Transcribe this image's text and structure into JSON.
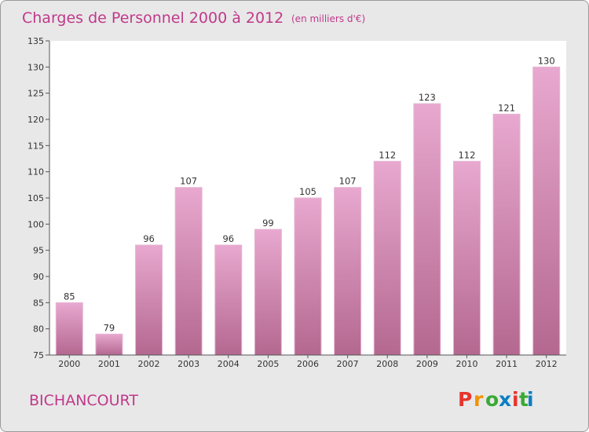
{
  "chart_data": {
    "type": "bar",
    "title": "Charges de Personnel 2000 à 2012",
    "subtitle": "(en milliers d'€)",
    "categories": [
      "2000",
      "2001",
      "2002",
      "2003",
      "2004",
      "2005",
      "2006",
      "2007",
      "2008",
      "2009",
      "2010",
      "2011",
      "2012"
    ],
    "values": [
      85,
      79,
      96,
      107,
      96,
      99,
      105,
      107,
      112,
      123,
      112,
      121,
      130
    ],
    "data_labels": [
      "85",
      "79",
      "96",
      "107",
      "96",
      "99",
      "105",
      "107",
      "112",
      "123",
      "112",
      "121",
      "130"
    ],
    "yticks": [
      "75",
      "80",
      "85",
      "90",
      "95",
      "100",
      "105",
      "110",
      "115",
      "120",
      "125",
      "130",
      "135"
    ],
    "ylim": [
      75,
      135
    ],
    "ytick_step": 5,
    "grid": false,
    "bar_color": "#c9729f"
  },
  "footer": {
    "commune": "BICHANCOURT",
    "logo": "Proxiti",
    "logo_colors": [
      "#e8342d",
      "#f39200",
      "#3aa935",
      "#0b7ec2",
      "#e8342d",
      "#3aa935",
      "#0b7ec2"
    ]
  }
}
